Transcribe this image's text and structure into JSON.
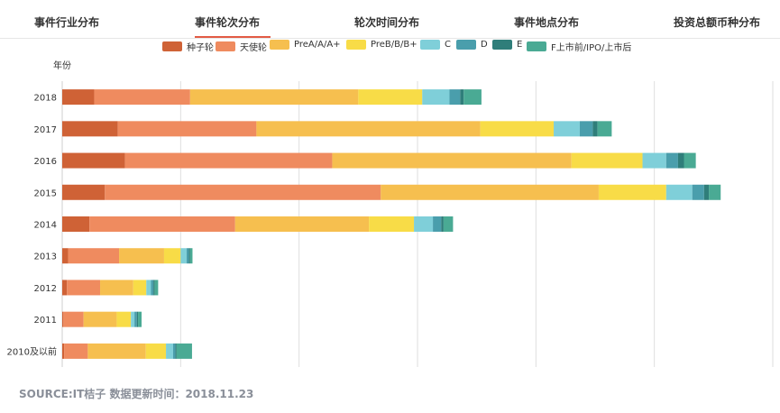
{
  "tabs": [
    {
      "label": "事件行业分布",
      "active": false
    },
    {
      "label": "事件轮次分布",
      "active": true
    },
    {
      "label": "轮次时间分布",
      "active": false
    },
    {
      "label": "事件地点分布",
      "active": false
    },
    {
      "label": "投资总额币种分布",
      "active": false
    }
  ],
  "accent_color": "#e25b45",
  "source_text": "SOURCE:IT桔子 数据更新时间：2018.11.23",
  "chart_data": {
    "type": "bar",
    "orientation": "horizontal",
    "stacked": true,
    "ylabel": "年份",
    "categories": [
      "2018",
      "2017",
      "2016",
      "2015",
      "2014",
      "2013",
      "2012",
      "2011",
      "2010及以前"
    ],
    "xlim": [
      0,
      3000
    ],
    "xticks": [
      0,
      500,
      1000,
      1500,
      2000,
      2500,
      3000
    ],
    "show_x_tick_labels": false,
    "grid": true,
    "legend_position": "top",
    "series": [
      {
        "name": "种子轮",
        "color": "#cf6236",
        "values": [
          135,
          235,
          265,
          180,
          115,
          25,
          20,
          5,
          8
        ]
      },
      {
        "name": "天使轮",
        "color": "#ef8b5f",
        "values": [
          405,
          585,
          875,
          1165,
          615,
          215,
          140,
          85,
          100
        ]
      },
      {
        "name": "PreA/A/A+",
        "color": "#f6bf4f",
        "values": [
          710,
          945,
          1010,
          920,
          565,
          190,
          140,
          140,
          245
        ]
      },
      {
        "name": "PreB/B/B+",
        "color": "#f8dc47",
        "values": [
          270,
          310,
          300,
          285,
          190,
          70,
          55,
          60,
          85
        ]
      },
      {
        "name": "C",
        "color": "#7fcfd9",
        "values": [
          115,
          110,
          100,
          110,
          80,
          25,
          20,
          15,
          30
        ]
      },
      {
        "name": "D",
        "color": "#4a9eac",
        "values": [
          45,
          55,
          50,
          50,
          35,
          10,
          10,
          10,
          10
        ]
      },
      {
        "name": "E",
        "color": "#2f7e7a",
        "values": [
          15,
          20,
          25,
          20,
          10,
          5,
          5,
          5,
          5
        ]
      },
      {
        "name": "F上市前/IPO/上市后",
        "color": "#4aaa94",
        "values": [
          75,
          60,
          50,
          50,
          40,
          10,
          15,
          15,
          65
        ]
      }
    ]
  }
}
